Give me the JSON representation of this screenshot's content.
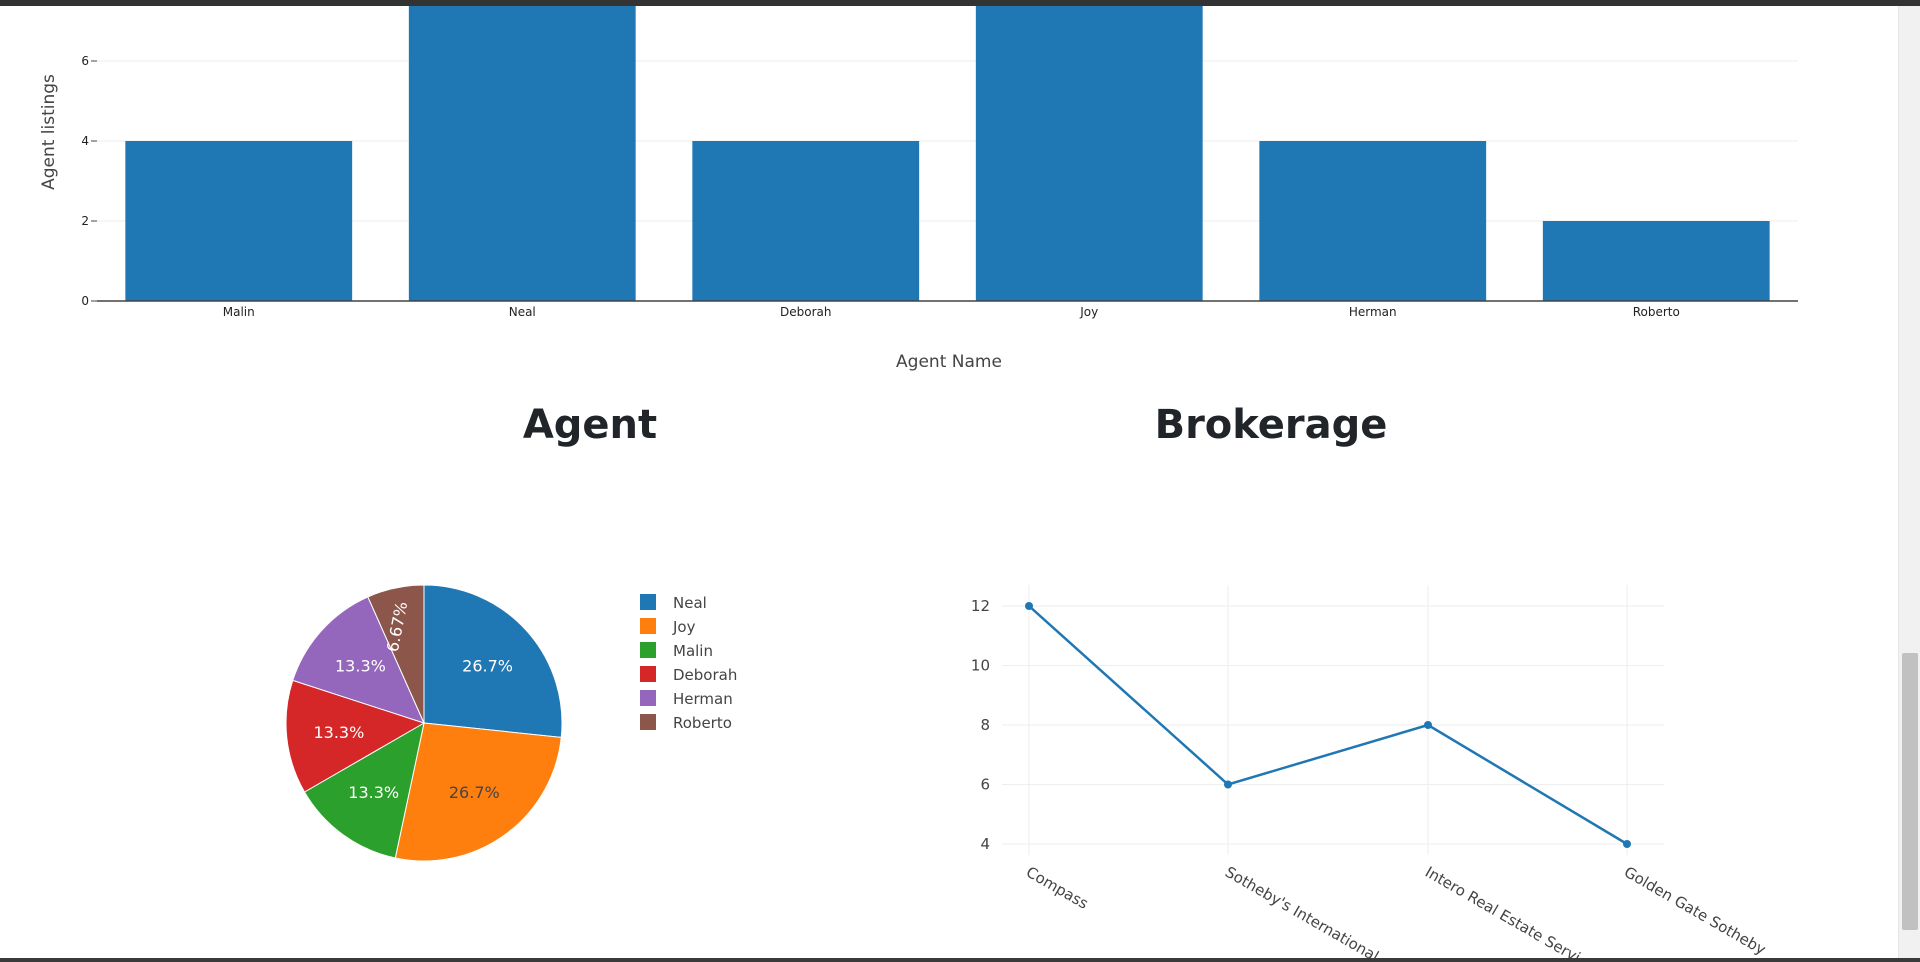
{
  "chart_data": [
    {
      "type": "bar",
      "categories": [
        "Malin",
        "Neal",
        "Deborah",
        "Joy",
        "Herman",
        "Roberto"
      ],
      "values": [
        4,
        8,
        4,
        8,
        4,
        2
      ],
      "xlabel": "Agent Name",
      "ylabel": "Agent listings",
      "yticks": [
        0,
        2,
        4,
        6
      ],
      "ylim": [
        0,
        7.4
      ],
      "color": "#1f77b4",
      "grid": true
    },
    {
      "type": "pie",
      "title": "Agent",
      "labels": [
        "Neal",
        "Joy",
        "Malin",
        "Deborah",
        "Herman",
        "Roberto"
      ],
      "values": [
        4,
        4,
        2,
        2,
        2,
        1
      ],
      "percent_labels": [
        "26.7%",
        "26.7%",
        "13.3%",
        "13.3%",
        "13.3%",
        "6.67%"
      ],
      "colors": [
        "#1f77b4",
        "#ff7f0e",
        "#2ca02c",
        "#d62728",
        "#9467bd",
        "#8c564b"
      ],
      "legend": "right"
    },
    {
      "type": "line",
      "title": "Brokerage",
      "categories": [
        "Compass",
        "Sotheby's International ...",
        "Intero Real Estate Servi...",
        "Golden Gate Sotheby"
      ],
      "values": [
        12,
        6,
        8,
        4
      ],
      "yticks": [
        4,
        6,
        8,
        10,
        12
      ],
      "ylim": [
        3.3,
        12.6
      ],
      "color": "#1f77b4",
      "grid": true
    }
  ]
}
